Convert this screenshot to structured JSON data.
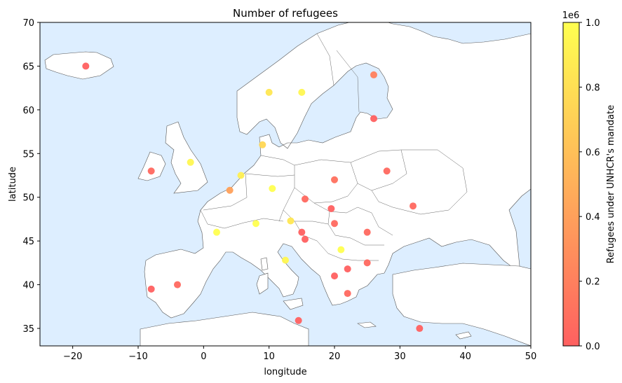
{
  "chart_data": {
    "type": "scatter",
    "title": "Number of refugees",
    "xlabel": "longitude",
    "ylabel": "latitude",
    "xlim": [
      -25,
      50
    ],
    "ylim": [
      33,
      70
    ],
    "xticks": [
      -20,
      -10,
      0,
      10,
      20,
      30,
      40,
      50
    ],
    "yticks": [
      35,
      40,
      45,
      50,
      55,
      60,
      65,
      70
    ],
    "grid": false,
    "background_color": "#ddeeff",
    "colorbar": {
      "label": "Refugees under UNHCR's mandate",
      "offset_label": "1e6",
      "range": [
        0,
        1.0
      ],
      "ticks": [
        "0.0",
        "0.2",
        "0.4",
        "0.6",
        "0.8",
        "1.0"
      ],
      "color_low": "#ff6060",
      "color_high": "#ffff50"
    },
    "points": [
      {
        "x": -18,
        "y": 65,
        "value": 0.0
      },
      {
        "x": 10,
        "y": 62,
        "value": 0.85
      },
      {
        "x": 15,
        "y": 62,
        "value": 0.95
      },
      {
        "x": 26,
        "y": 64,
        "value": 0.2
      },
      {
        "x": 26,
        "y": 59,
        "value": 0.0
      },
      {
        "x": 9,
        "y": 56,
        "value": 0.75
      },
      {
        "x": -8,
        "y": 53,
        "value": 0.05
      },
      {
        "x": -2,
        "y": 54,
        "value": 0.95
      },
      {
        "x": 5.7,
        "y": 52.5,
        "value": 0.9
      },
      {
        "x": 4,
        "y": 50.8,
        "value": 0.4
      },
      {
        "x": 10.5,
        "y": 51,
        "value": 1.0
      },
      {
        "x": 20,
        "y": 52,
        "value": 0.1
      },
      {
        "x": 28,
        "y": 53,
        "value": 0.05
      },
      {
        "x": 15.5,
        "y": 49.8,
        "value": 0.05
      },
      {
        "x": 19.5,
        "y": 48.7,
        "value": 0.0
      },
      {
        "x": 32,
        "y": 49,
        "value": 0.05
      },
      {
        "x": 2,
        "y": 46,
        "value": 1.0
      },
      {
        "x": 8,
        "y": 47,
        "value": 1.0
      },
      {
        "x": 13.3,
        "y": 47.3,
        "value": 0.85
      },
      {
        "x": 20,
        "y": 47,
        "value": 0.05
      },
      {
        "x": 25,
        "y": 46,
        "value": 0.05
      },
      {
        "x": 15,
        "y": 46,
        "value": 0.0
      },
      {
        "x": 15.5,
        "y": 45.2,
        "value": 0.0
      },
      {
        "x": 21,
        "y": 44,
        "value": 1.0
      },
      {
        "x": 12.5,
        "y": 42.8,
        "value": 0.95
      },
      {
        "x": 22,
        "y": 41.8,
        "value": 0.0
      },
      {
        "x": 25,
        "y": 42.5,
        "value": 0.05
      },
      {
        "x": 20,
        "y": 41,
        "value": 0.0
      },
      {
        "x": 22,
        "y": 39,
        "value": 0.05
      },
      {
        "x": -8,
        "y": 39.5,
        "value": 0.0
      },
      {
        "x": -4,
        "y": 40,
        "value": 0.05
      },
      {
        "x": 14.5,
        "y": 35.9,
        "value": 0.0
      },
      {
        "x": 33,
        "y": 35,
        "value": 0.0
      }
    ]
  }
}
